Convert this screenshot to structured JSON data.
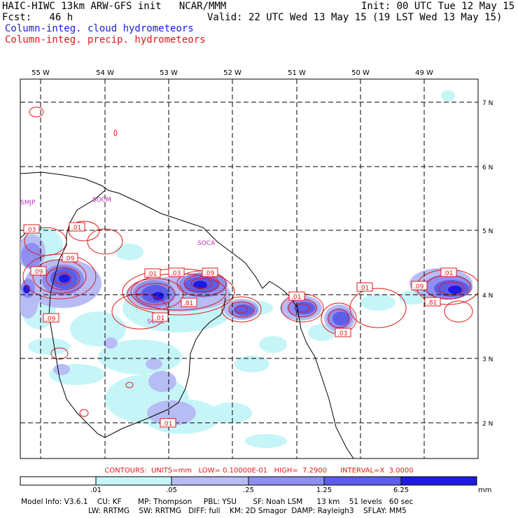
{
  "header": {
    "line1_left": "HAIC-HIWC 13km ARW-GFS init   NCAR/MMM",
    "line1_right": "Init: 00 UTC Tue 12 May 15",
    "line2_left": "Fcst:   46 h",
    "line2_right": "Valid: 22 UTC Wed 13 May 15 (19 LST Wed 13 May 15)",
    "line3": "Column-integ. cloud hydrometeors",
    "line4": "Column-integ. precip. hydrometeors"
  },
  "colors": {
    "cloud_field": "#1a1ad6",
    "precip_field": "#e01818",
    "shade_1": "#c6f5f8",
    "shade_2": "#b7bcf4",
    "shade_3": "#8e8ff0",
    "shade_4": "#5d5ee8",
    "shade_5": "#3d3be6",
    "shade_6": "#1f1ae0"
  },
  "map": {
    "lon_labels": [
      "55 W",
      "54 W",
      "53 W",
      "52 W",
      "51 W",
      "50 W",
      "49 W"
    ],
    "lat_labels": [
      "7 N",
      "6 N",
      "5 N",
      "4 N",
      "3 N",
      "2 N"
    ],
    "station_labels": [
      "SMJP",
      "SOCM",
      "SOCA",
      "SOOL"
    ],
    "contour_labels": [
      ".03",
      ".01",
      ".09",
      ".09",
      ".09",
      ".01",
      ".03",
      ".09",
      ".81",
      ".01",
      ".01",
      ".03",
      ".01",
      ".09",
      ".01",
      ".81",
      ".01"
    ]
  },
  "footer": {
    "contours": "CONTOURS:  UNITS=mm   LOW= 0.10000E-01   HIGH=  7.2900      INTERVAL=X  3.0000",
    "colorbar_ticks": [
      ".01",
      ".05",
      ".25",
      "1.25",
      "6.25"
    ],
    "colorbar_unit": "mm",
    "model_line1": "Model Info: V3.6.1    CU: KF       MP: Thompson     PBL: YSU       SF: Noah LSM      13 km    51 levels   60 sec",
    "model_line2": "LW: RRTMG    SW: RRTMG   DIFF: full    KM: 2D Smagor  DAMP: Rayleigh3    SFLAY: MM5"
  }
}
